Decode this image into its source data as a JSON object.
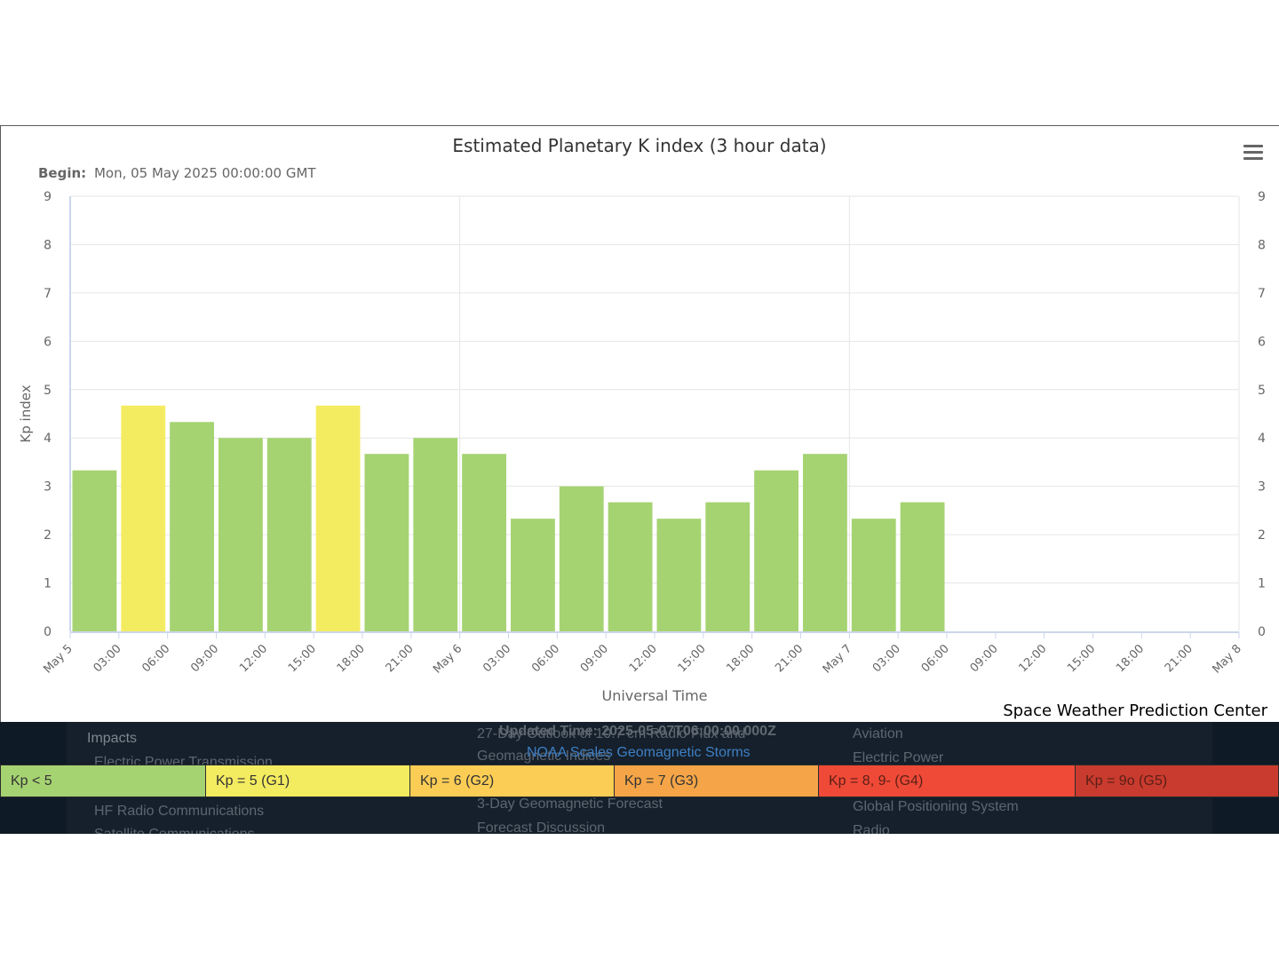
{
  "chart_data": {
    "type": "bar",
    "title": "Estimated Planetary K index (3 hour data)",
    "subtitle_label": "Begin:",
    "subtitle_value": "Mon, 05 May 2025 00:00:00 GMT",
    "ylabel": "Kp index",
    "xlabel": "Universal Time",
    "ylim": [
      0,
      9
    ],
    "yticks": [
      "0",
      "1",
      "2",
      "3",
      "4",
      "5",
      "6",
      "7",
      "8",
      "9"
    ],
    "xticks": [
      "May 5",
      "03:00",
      "06:00",
      "09:00",
      "12:00",
      "15:00",
      "18:00",
      "21:00",
      "May 6",
      "03:00",
      "06:00",
      "09:00",
      "12:00",
      "15:00",
      "18:00",
      "21:00",
      "May 7",
      "03:00",
      "06:00",
      "09:00",
      "12:00",
      "15:00",
      "18:00",
      "21:00",
      "May 8"
    ],
    "categories": [
      "May 5 00:00",
      "May 5 03:00",
      "May 5 06:00",
      "May 5 09:00",
      "May 5 12:00",
      "May 5 15:00",
      "May 5 18:00",
      "May 5 21:00",
      "May 6 00:00",
      "May 6 03:00",
      "May 6 06:00",
      "May 6 09:00",
      "May 6 12:00",
      "May 6 15:00",
      "May 6 18:00",
      "May 6 21:00",
      "May 7 00:00",
      "May 7 03:00"
    ],
    "values": [
      3.33,
      4.67,
      4.33,
      4.0,
      4.0,
      4.67,
      3.67,
      4.0,
      3.67,
      2.33,
      3.0,
      2.67,
      2.33,
      2.67,
      3.33,
      3.67,
      2.33,
      2.67
    ],
    "grid": true,
    "credit": "Space Weather Prediction Center"
  },
  "colors": {
    "kp_lt5": "#a6d372",
    "kp_g1": "#f4ec60",
    "kp_g2": "#fccd55",
    "kp_g3": "#f5a547",
    "kp_g4": "#ef4a37",
    "kp_g5": "#c83b2e"
  },
  "legend": [
    {
      "label": "Kp < 5",
      "color": "#a6d372"
    },
    {
      "label": "Kp = 5 (G1)",
      "color": "#f4ec60"
    },
    {
      "label": "Kp = 6 (G2)",
      "color": "#fccd55"
    },
    {
      "label": "Kp = 7 (G3)",
      "color": "#f5a547"
    },
    {
      "label": "Kp = 8, 9- (G4)",
      "color": "#ef4a37"
    },
    {
      "label": "Kp = 9o (G5)",
      "color": "#c83b2e"
    }
  ],
  "menu_icon": "hamburger-icon",
  "footer": {
    "impacts": "Impacts",
    "electric_power_transmission": "Electric Power Transmission",
    "hf_radio": "HF Radio Communications",
    "satellite_comm": "Satellite Communications",
    "updated_time": "Updated Time: 2025-05-07T06:00:00.000Z",
    "outlook_27day": "27-Day Outlook of 10.7 cm Radio Flux and",
    "geomagnetic_indices": "Geomagnetic Indices",
    "noaa_scales": "NOAA Scales Geomagnetic Storms",
    "forecast_3day": "3-Day Geomagnetic Forecast",
    "forecast_discussion": "Forecast Discussion",
    "aviation": "Aviation",
    "electric_power": "Electric Power",
    "gps": "Global Positioning System",
    "radio": "Radio"
  }
}
